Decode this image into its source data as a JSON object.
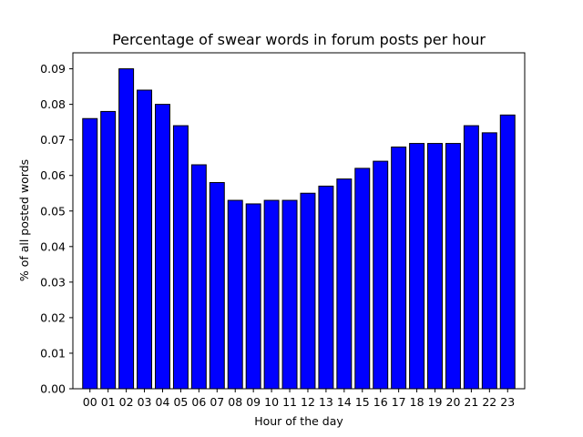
{
  "chart_data": {
    "type": "bar",
    "title": "Percentage of swear words in forum posts per hour",
    "xlabel": "Hour of the day",
    "ylabel": "% of all posted words",
    "categories": [
      "00",
      "01",
      "02",
      "03",
      "04",
      "05",
      "06",
      "07",
      "08",
      "09",
      "10",
      "11",
      "12",
      "13",
      "14",
      "15",
      "16",
      "17",
      "18",
      "19",
      "20",
      "21",
      "22",
      "23"
    ],
    "values": [
      0.076,
      0.078,
      0.09,
      0.084,
      0.08,
      0.074,
      0.063,
      0.058,
      0.053,
      0.052,
      0.053,
      0.053,
      0.055,
      0.057,
      0.059,
      0.062,
      0.064,
      0.068,
      0.069,
      0.069,
      0.069,
      0.074,
      0.072,
      0.077
    ],
    "ylim": [
      0,
      0.0945
    ],
    "yticks": [
      "0.00",
      "0.01",
      "0.02",
      "0.03",
      "0.04",
      "0.05",
      "0.06",
      "0.07",
      "0.08",
      "0.09"
    ],
    "grid": false,
    "legend": "none",
    "colors": {
      "bar_fill": "#0000ff",
      "bar_edge": "#000000",
      "axes": "#000000",
      "background": "#ffffff"
    }
  }
}
